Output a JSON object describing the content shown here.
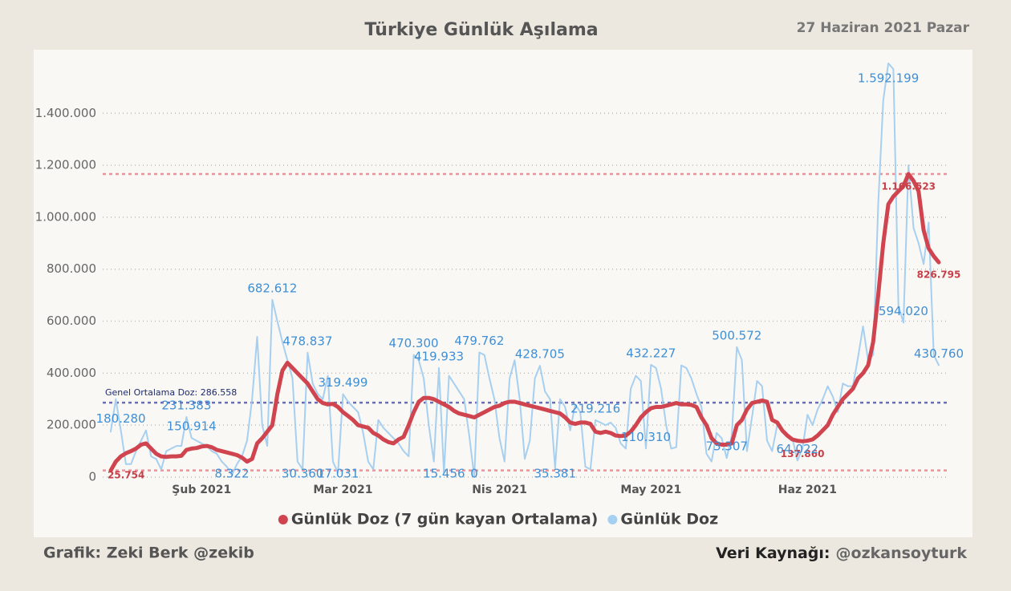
{
  "header": {
    "title": "Türkiye Günlük Aşılama",
    "date": "27 Haziran 2021 Pazar"
  },
  "footer": {
    "credit": "Grafik: Zeki Berk @zekib",
    "source_label": "Veri Kaynağı:",
    "source": "@ozkansoyturk"
  },
  "chart_data": {
    "type": "line",
    "legend": "bottom",
    "grid": true,
    "categories": [
      null,
      null,
      null,
      null,
      null,
      null,
      null,
      null,
      null,
      null,
      null,
      null,
      null,
      null,
      null,
      null,
      null,
      null,
      "Şub 2021",
      null,
      null,
      null,
      null,
      null,
      null,
      null,
      null,
      null,
      null,
      null,
      null,
      null,
      null,
      null,
      null,
      null,
      null,
      null,
      null,
      null,
      null,
      null,
      null,
      null,
      null,
      null,
      "Mar 2021",
      null,
      null,
      null,
      null,
      null,
      null,
      null,
      null,
      null,
      null,
      null,
      null,
      null,
      null,
      null,
      null,
      null,
      null,
      null,
      null,
      null,
      null,
      null,
      null,
      null,
      null,
      null,
      null,
      null,
      null,
      "Nis 2021",
      null,
      null,
      null,
      null,
      null,
      null,
      null,
      null,
      null,
      null,
      null,
      null,
      null,
      null,
      null,
      null,
      null,
      null,
      null,
      null,
      null,
      null,
      null,
      null,
      null,
      null,
      null,
      null,
      null,
      "May 2021",
      null,
      null,
      null,
      null,
      null,
      null,
      null,
      null,
      null,
      null,
      null,
      null,
      null,
      null,
      null,
      null,
      null,
      null,
      null,
      null,
      null,
      null,
      null,
      null,
      null,
      null,
      null,
      null,
      null,
      null,
      "Haz 2021",
      null,
      null,
      null,
      null,
      null,
      null,
      null,
      null,
      null,
      null,
      null,
      null,
      null,
      null,
      null,
      null,
      null,
      null,
      null,
      null,
      null,
      null,
      null,
      null,
      null,
      null
    ],
    "ylim": [
      0,
      1620000
    ],
    "yticks": [
      0,
      {
        "value": 200000,
        "label": "200.000"
      },
      {
        "value": 400000,
        "label": "400.000"
      },
      {
        "value": 600000,
        "label": "600.000"
      },
      {
        "value": 800000,
        "label": "800.000"
      },
      {
        "value": 1000000,
        "label": "1.000.000"
      },
      {
        "value": 1200000,
        "label": "1.200.000"
      },
      {
        "value": 1400000,
        "label": "1.400.000"
      }
    ],
    "reference_lines": [
      {
        "value": 286558,
        "label": "Genel Ortalama Doz: 286.558",
        "color": "#6a6fb3"
      },
      {
        "value": 1166523,
        "color": "#e8949b"
      },
      {
        "value": 25754,
        "color": "#e8949b"
      }
    ],
    "series": [
      {
        "name": "Günlük Doz (7 gün kayan Ortalama)",
        "color": "#d0444f",
        "values": [
          25754,
          60000,
          80000,
          92000,
          100000,
          110000,
          125000,
          130000,
          110000,
          90000,
          80000,
          78000,
          80000,
          80000,
          82000,
          105000,
          110000,
          112000,
          118000,
          120000,
          115000,
          105000,
          100000,
          95000,
          90000,
          85000,
          75000,
          60000,
          70000,
          130000,
          150000,
          175000,
          200000,
          320000,
          410000,
          440000,
          420000,
          400000,
          380000,
          360000,
          330000,
          300000,
          285000,
          280000,
          282000,
          270000,
          250000,
          235000,
          220000,
          200000,
          195000,
          190000,
          170000,
          160000,
          145000,
          135000,
          130000,
          145000,
          155000,
          200000,
          250000,
          290000,
          305000,
          305000,
          300000,
          290000,
          280000,
          270000,
          255000,
          245000,
          240000,
          235000,
          230000,
          240000,
          250000,
          260000,
          270000,
          275000,
          285000,
          290000,
          290000,
          285000,
          280000,
          275000,
          270000,
          265000,
          260000,
          255000,
          250000,
          245000,
          230000,
          210000,
          205000,
          210000,
          210000,
          205000,
          175000,
          170000,
          175000,
          170000,
          160000,
          158000,
          160000,
          175000,
          200000,
          230000,
          250000,
          265000,
          270000,
          270000,
          275000,
          280000,
          285000,
          280000,
          280000,
          278000,
          270000,
          230000,
          200000,
          150000,
          130000,
          125000,
          125000,
          130000,
          200000,
          220000,
          260000,
          285000,
          290000,
          295000,
          290000,
          220000,
          210000,
          180000,
          160000,
          145000,
          140000,
          137860,
          140000,
          145000,
          160000,
          180000,
          200000,
          240000,
          270000,
          300000,
          320000,
          340000,
          380000,
          400000,
          430000,
          520000,
          700000,
          900000,
          1050000,
          1080000,
          1100000,
          1120000,
          1166523,
          1140000,
          1100000,
          950000,
          880000,
          850000,
          826795
        ],
        "value_labels": [
          "25.754",
          null,
          null,
          null,
          null,
          null,
          null,
          null,
          null,
          null,
          null,
          null,
          null,
          null,
          null,
          null,
          null,
          null,
          null,
          null,
          null,
          null,
          null,
          null,
          null,
          null,
          null,
          null,
          null,
          null,
          null,
          null,
          null,
          null,
          null,
          null,
          null,
          null,
          null,
          null,
          null,
          null,
          null,
          null,
          null,
          null,
          null,
          null,
          null,
          null,
          null,
          null,
          null,
          null,
          null,
          null,
          null,
          null,
          null,
          null,
          null,
          null,
          null,
          null,
          null,
          null,
          null,
          null,
          null,
          null,
          null,
          null,
          null,
          null,
          null,
          null,
          null,
          null,
          null,
          null,
          null,
          null,
          null,
          null,
          null,
          null,
          null,
          null,
          null,
          null,
          null,
          null,
          null,
          null,
          null,
          null,
          null,
          null,
          null,
          null,
          null,
          null,
          null,
          null,
          null,
          null,
          null,
          null,
          null,
          null,
          null,
          null,
          null,
          null,
          null,
          null,
          null,
          null,
          null,
          null,
          null,
          null,
          null,
          null,
          null,
          null,
          null,
          null,
          null,
          null,
          null,
          null,
          null,
          null,
          null,
          null,
          null,
          "137.860",
          null,
          null,
          null,
          null,
          null,
          null,
          null,
          null,
          null,
          null,
          null,
          null,
          null,
          null,
          null,
          null,
          null,
          null,
          null,
          null,
          "1.166.523",
          null,
          null,
          null,
          null,
          null,
          "826.795"
        ]
      },
      {
        "name": "Günlük Doz",
        "color": "#a7cff0",
        "values": [
          175000,
          300000,
          180280,
          50000,
          50000,
          100000,
          140000,
          180000,
          80000,
          70000,
          30000,
          100000,
          110000,
          120000,
          120000,
          231383,
          150914,
          140000,
          130000,
          120000,
          100000,
          90000,
          60000,
          40000,
          8322,
          50000,
          80000,
          140000,
          300000,
          540000,
          200000,
          120000,
          682612,
          600000,
          520000,
          450000,
          380000,
          60000,
          30360,
          478837,
          360000,
          320000,
          300000,
          390000,
          60000,
          17031,
          319499,
          290000,
          270000,
          250000,
          170000,
          60000,
          30000,
          220000,
          190000,
          170000,
          150000,
          130000,
          100000,
          80000,
          470300,
          450000,
          380000,
          200000,
          60000,
          419933,
          15456,
          390000,
          360000,
          330000,
          300000,
          160000,
          0,
          479762,
          470000,
          380000,
          300000,
          150000,
          60000,
          380000,
          450000,
          300000,
          70000,
          140000,
          380000,
          428705,
          330000,
          300000,
          35381,
          300000,
          270000,
          180000,
          280000,
          250000,
          40000,
          30000,
          219216,
          210000,
          200000,
          210000,
          190000,
          130000,
          110000,
          340000,
          390000,
          370000,
          110310,
          432227,
          420000,
          340000,
          200000,
          110000,
          115000,
          430000,
          420000,
          380000,
          320000,
          270000,
          90000,
          60000,
          170000,
          150000,
          73307,
          160000,
          500572,
          450000,
          100000,
          230000,
          370000,
          350000,
          140000,
          100000,
          200000,
          180000,
          160000,
          150000,
          64022,
          110000,
          240000,
          200000,
          260000,
          300000,
          350000,
          310000,
          250000,
          360000,
          350000,
          350000,
          460000,
          580000,
          450000,
          470000,
          1050000,
          1450000,
          1592199,
          1570000,
          660000,
          594020,
          1200000,
          960000,
          900000,
          820000,
          980000,
          470000,
          430760
        ],
        "value_labels": [
          null,
          null,
          "180.280",
          null,
          null,
          null,
          null,
          null,
          null,
          null,
          null,
          null,
          null,
          null,
          null,
          "231.383",
          "150.914",
          null,
          null,
          null,
          null,
          null,
          null,
          null,
          "8.322",
          null,
          null,
          null,
          null,
          null,
          null,
          null,
          "682.612",
          null,
          null,
          null,
          null,
          null,
          "30.360",
          "478.837",
          null,
          null,
          null,
          null,
          null,
          "17.031",
          "319.499",
          null,
          null,
          null,
          null,
          null,
          null,
          null,
          null,
          null,
          null,
          null,
          null,
          null,
          "470.300",
          null,
          null,
          null,
          null,
          "419.933",
          "15.456",
          null,
          null,
          null,
          null,
          null,
          "0",
          "479.762",
          null,
          null,
          null,
          null,
          null,
          null,
          null,
          null,
          null,
          null,
          null,
          "428.705",
          null,
          null,
          "35.381",
          null,
          null,
          null,
          null,
          null,
          null,
          null,
          "219.216",
          null,
          null,
          null,
          null,
          null,
          null,
          null,
          null,
          null,
          "110.310",
          "432.227",
          null,
          null,
          null,
          null,
          null,
          null,
          null,
          null,
          null,
          null,
          null,
          null,
          null,
          null,
          "73.307",
          null,
          "500.572",
          null,
          null,
          null,
          null,
          null,
          null,
          null,
          null,
          null,
          null,
          null,
          "64.022",
          null,
          null,
          null,
          null,
          null,
          null,
          null,
          null,
          null,
          null,
          null,
          null,
          null,
          null,
          null,
          null,
          null,
          "1.592.199",
          null,
          null,
          "594.020",
          null,
          null,
          null,
          null,
          null,
          null,
          "430.760"
        ]
      }
    ]
  }
}
